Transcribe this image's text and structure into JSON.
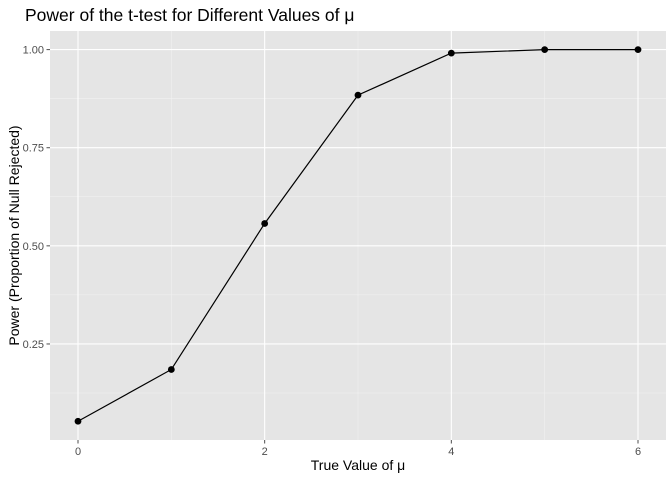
{
  "chart_data": {
    "type": "line",
    "title": "Power of the t-test for Different Values of μ",
    "xlabel": "True Value of μ",
    "ylabel": "Power (Proportion of Null Rejected)",
    "x": [
      0,
      1,
      2,
      3,
      4,
      5,
      6
    ],
    "series": [
      {
        "values": [
          0.053,
          0.185,
          0.557,
          0.884,
          0.991,
          1.0,
          1.0
        ]
      }
    ],
    "xlim": [
      -0.3,
      6.3
    ],
    "ylim": [
      0.0053,
      1.0474
    ],
    "x_ticks": [
      0,
      2,
      4,
      6
    ],
    "x_tick_labels": [
      "0",
      "2",
      "4",
      "6"
    ],
    "x_minor_ticks": [
      1,
      3,
      5
    ],
    "y_ticks": [
      0.25,
      0.5,
      0.75,
      1.0
    ],
    "y_tick_labels": [
      "0.25",
      "0.50",
      "0.75",
      "1.00"
    ],
    "y_minor_ticks": [
      0.125,
      0.375,
      0.625,
      0.875
    ],
    "grid": true,
    "colors": {
      "panel": "#e5e5e5",
      "grid_major": "#ffffff",
      "grid_minor": "#f2f2f2",
      "line": "#000000",
      "tick": "#4d4d4d"
    }
  }
}
